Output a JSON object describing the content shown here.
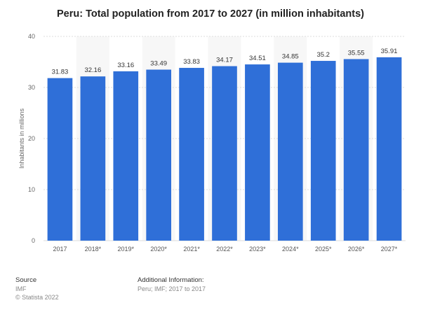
{
  "chart_data": {
    "type": "bar",
    "title": "Peru: Total population from 2017 to 2027 (in million inhabitants)",
    "xlabel": "",
    "ylabel": "Inhabitants in millions",
    "categories": [
      "2017",
      "2018*",
      "2019*",
      "2020*",
      "2021*",
      "2022*",
      "2023*",
      "2024*",
      "2025*",
      "2026*",
      "2027*"
    ],
    "values": [
      31.83,
      32.16,
      33.16,
      33.49,
      33.83,
      34.17,
      34.51,
      34.85,
      35.2,
      35.55,
      35.91
    ],
    "value_labels": [
      "31.83",
      "32.16",
      "33.16",
      "33.49",
      "33.83",
      "34.17",
      "34.51",
      "34.85",
      "35.2",
      "35.55",
      "35.91"
    ],
    "ylim": [
      0,
      40
    ],
    "yticks": [
      0,
      10,
      20,
      30,
      40
    ],
    "grid": true,
    "bar_color": "#2f6fd8"
  },
  "footer": {
    "source_label": "Source",
    "source_value": "IMF",
    "copyright": "© Statista 2022",
    "additional_label": "Additional Information:",
    "additional_value": "Peru; IMF; 2017 to 2017"
  }
}
